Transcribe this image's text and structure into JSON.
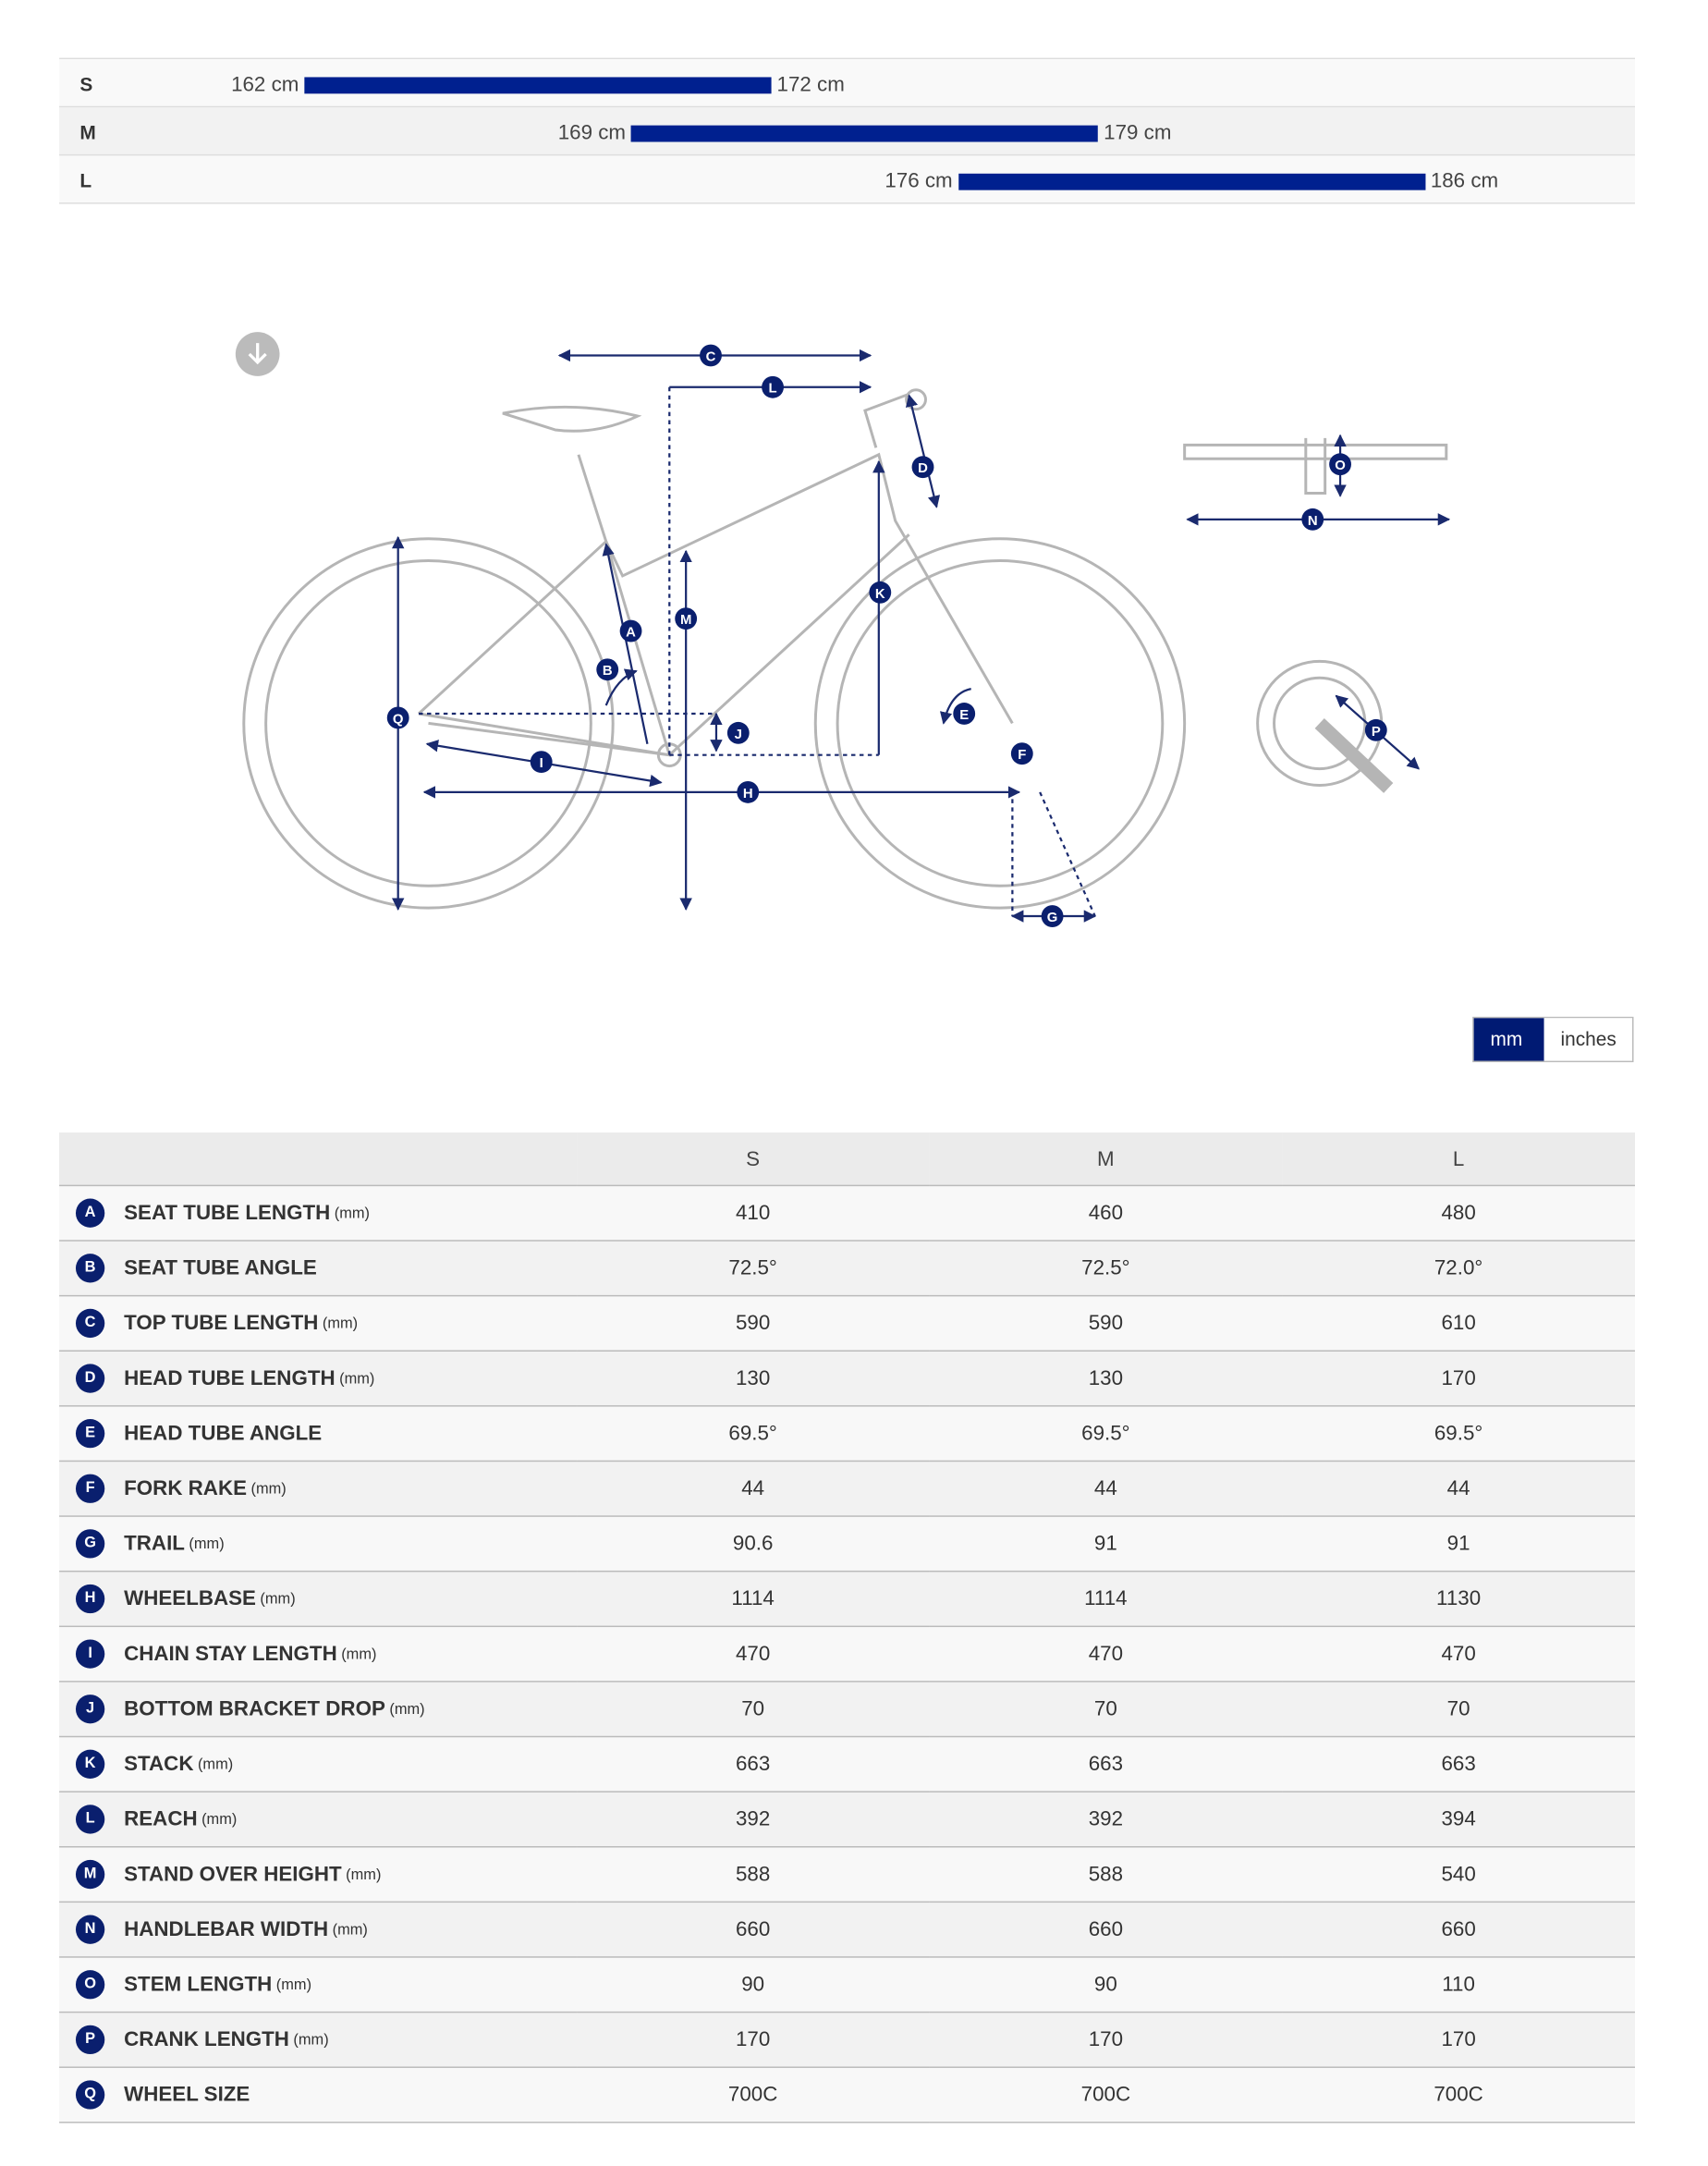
{
  "size_chart": [
    {
      "size": "S",
      "min_label": "162 cm",
      "max_label": "172 cm",
      "min_cm": 162,
      "max_cm": 172
    },
    {
      "size": "M",
      "min_label": "169 cm",
      "max_label": "179 cm",
      "min_cm": 169,
      "max_cm": 179
    },
    {
      "size": "L",
      "min_label": "176 cm",
      "max_label": "186 cm",
      "min_cm": 176,
      "max_cm": 186
    }
  ],
  "diagram": {
    "download_icon": "arrow-down-circle-icon",
    "letters": [
      "A",
      "B",
      "C",
      "D",
      "E",
      "F",
      "G",
      "H",
      "I",
      "J",
      "K",
      "L",
      "M",
      "N",
      "O",
      "P",
      "Q"
    ]
  },
  "unit_toggle": {
    "options": [
      "mm",
      "inches"
    ],
    "selected": "mm"
  },
  "colors": {
    "accent": "#001a73",
    "bar": "#00208f"
  },
  "geometry": {
    "columns": [
      "S",
      "M",
      "L"
    ],
    "rows": [
      {
        "key": "A",
        "name": "SEAT TUBE LENGTH",
        "unit": "(mm)",
        "values": [
          "410",
          "460",
          "480"
        ]
      },
      {
        "key": "B",
        "name": "SEAT TUBE ANGLE",
        "unit": "",
        "values": [
          "72.5°",
          "72.5°",
          "72.0°"
        ]
      },
      {
        "key": "C",
        "name": "TOP TUBE LENGTH",
        "unit": "(mm)",
        "values": [
          "590",
          "590",
          "610"
        ]
      },
      {
        "key": "D",
        "name": "HEAD TUBE LENGTH",
        "unit": "(mm)",
        "values": [
          "130",
          "130",
          "170"
        ]
      },
      {
        "key": "E",
        "name": "HEAD TUBE ANGLE",
        "unit": "",
        "values": [
          "69.5°",
          "69.5°",
          "69.5°"
        ]
      },
      {
        "key": "F",
        "name": "FORK RAKE",
        "unit": "(mm)",
        "values": [
          "44",
          "44",
          "44"
        ]
      },
      {
        "key": "G",
        "name": "TRAIL",
        "unit": "(mm)",
        "values": [
          "90.6",
          "91",
          "91"
        ]
      },
      {
        "key": "H",
        "name": "WHEELBASE",
        "unit": "(mm)",
        "values": [
          "1114",
          "1114",
          "1130"
        ]
      },
      {
        "key": "I",
        "name": "CHAIN STAY LENGTH",
        "unit": "(mm)",
        "values": [
          "470",
          "470",
          "470"
        ]
      },
      {
        "key": "J",
        "name": "BOTTOM BRACKET DROP",
        "unit": "(mm)",
        "values": [
          "70",
          "70",
          "70"
        ]
      },
      {
        "key": "K",
        "name": "STACK",
        "unit": "(mm)",
        "values": [
          "663",
          "663",
          "663"
        ]
      },
      {
        "key": "L",
        "name": "REACH",
        "unit": "(mm)",
        "values": [
          "392",
          "392",
          "394"
        ]
      },
      {
        "key": "M",
        "name": "STAND OVER HEIGHT",
        "unit": "(mm)",
        "values": [
          "588",
          "588",
          "540"
        ]
      },
      {
        "key": "N",
        "name": "HANDLEBAR WIDTH",
        "unit": "(mm)",
        "values": [
          "660",
          "660",
          "660"
        ]
      },
      {
        "key": "O",
        "name": "STEM LENGTH",
        "unit": "(mm)",
        "values": [
          "90",
          "90",
          "110"
        ]
      },
      {
        "key": "P",
        "name": "CRANK LENGTH",
        "unit": "(mm)",
        "values": [
          "170",
          "170",
          "170"
        ]
      },
      {
        "key": "Q",
        "name": "WHEEL SIZE",
        "unit": "",
        "values": [
          "700C",
          "700C",
          "700C"
        ]
      }
    ]
  }
}
